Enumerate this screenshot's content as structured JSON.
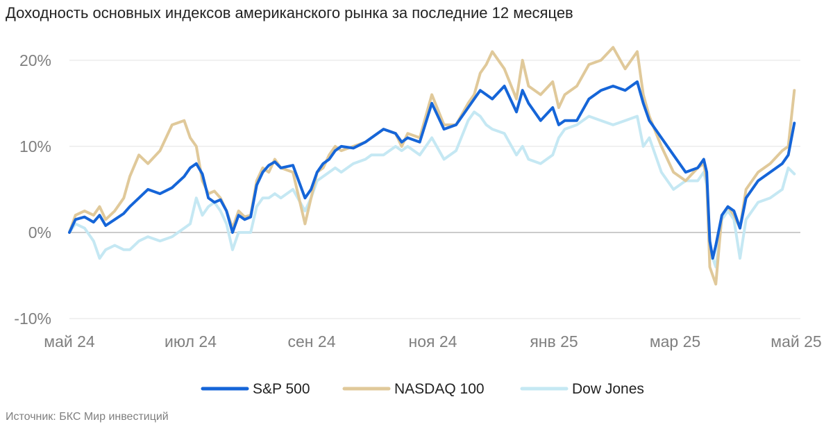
{
  "title": "Доходность основных индексов американского рынка за последние 12 месяцев",
  "source": "Источник: БКС Мир инвестиций",
  "chart_data": {
    "type": "line",
    "title": "Доходность основных индексов американского рынка за последние 12 месяцев",
    "xlabel": "",
    "ylabel": "",
    "x_ticks": [
      "май 24",
      "июл 24",
      "сен 24",
      "ноя 24",
      "янв 25",
      "мар 25",
      "май 25"
    ],
    "y_ticks": [
      "20%",
      "10%",
      "0%",
      "-10%"
    ],
    "y_tick_values": [
      20,
      10,
      0,
      -10
    ],
    "ylim": [
      -10,
      22
    ],
    "xlim": [
      0,
      12.1
    ],
    "grid": true,
    "legend_position": "bottom",
    "series": [
      {
        "name": "S&P 500",
        "color": "#1565d8",
        "x": [
          0,
          0.1,
          0.25,
          0.4,
          0.5,
          0.6,
          0.75,
          0.9,
          1.0,
          1.15,
          1.3,
          1.5,
          1.7,
          1.9,
          2.0,
          2.1,
          2.2,
          2.3,
          2.4,
          2.5,
          2.6,
          2.7,
          2.8,
          2.9,
          3.0,
          3.1,
          3.2,
          3.3,
          3.4,
          3.5,
          3.7,
          3.9,
          4.0,
          4.1,
          4.2,
          4.3,
          4.4,
          4.5,
          4.7,
          4.9,
          5.0,
          5.2,
          5.4,
          5.5,
          5.6,
          5.8,
          6.0,
          6.2,
          6.4,
          6.6,
          6.7,
          6.8,
          6.9,
          7.0,
          7.2,
          7.4,
          7.5,
          7.6,
          7.8,
          8.0,
          8.1,
          8.2,
          8.4,
          8.6,
          8.8,
          9.0,
          9.2,
          9.4,
          9.5,
          9.6,
          9.8,
          10.0,
          10.2,
          10.4,
          10.5,
          10.55,
          10.6,
          10.65,
          10.7,
          10.8,
          10.9,
          11.0,
          11.1,
          11.2,
          11.4,
          11.6,
          11.8,
          11.9,
          12.0
        ],
        "y": [
          0,
          1.5,
          1.8,
          1.2,
          2.0,
          0.8,
          1.5,
          2.2,
          3.0,
          4.0,
          5.0,
          4.5,
          5.2,
          6.5,
          7.5,
          8.0,
          6.8,
          4.0,
          3.5,
          3.8,
          2.5,
          0.0,
          2.0,
          1.5,
          1.8,
          5.5,
          7.0,
          7.8,
          8.2,
          7.5,
          7.8,
          4.0,
          5.0,
          7.0,
          8.0,
          8.5,
          9.5,
          10.0,
          9.8,
          10.5,
          11.0,
          12.0,
          11.5,
          10.5,
          11.0,
          10.5,
          15.0,
          12.0,
          12.5,
          14.5,
          15.5,
          16.5,
          16.0,
          15.5,
          17.0,
          14.0,
          16.5,
          15.0,
          13.0,
          14.5,
          12.5,
          13.0,
          13.0,
          15.5,
          16.5,
          17.0,
          16.5,
          17.5,
          15.0,
          13.0,
          11.0,
          9.0,
          7.0,
          7.5,
          8.5,
          7.0,
          -1.0,
          -3.0,
          -1.5,
          2.0,
          3.0,
          2.5,
          0.5,
          4.0,
          6.0,
          7.0,
          8.0,
          9.0,
          12.7
        ]
      },
      {
        "name": "NASDAQ 100",
        "color": "#e0c99a",
        "x": [
          0,
          0.1,
          0.25,
          0.4,
          0.5,
          0.6,
          0.75,
          0.9,
          1.0,
          1.15,
          1.3,
          1.5,
          1.7,
          1.9,
          2.0,
          2.1,
          2.2,
          2.3,
          2.4,
          2.5,
          2.6,
          2.7,
          2.8,
          2.9,
          3.0,
          3.1,
          3.2,
          3.3,
          3.4,
          3.5,
          3.7,
          3.9,
          4.0,
          4.1,
          4.2,
          4.3,
          4.4,
          4.5,
          4.7,
          4.9,
          5.0,
          5.2,
          5.4,
          5.5,
          5.6,
          5.8,
          6.0,
          6.2,
          6.4,
          6.6,
          6.7,
          6.8,
          6.9,
          7.0,
          7.2,
          7.4,
          7.5,
          7.6,
          7.8,
          8.0,
          8.1,
          8.2,
          8.4,
          8.6,
          8.8,
          9.0,
          9.2,
          9.4,
          9.5,
          9.6,
          9.8,
          10.0,
          10.2,
          10.4,
          10.5,
          10.55,
          10.6,
          10.65,
          10.7,
          10.8,
          10.9,
          11.0,
          11.1,
          11.2,
          11.4,
          11.6,
          11.8,
          11.9,
          12.0
        ],
        "y": [
          0,
          2.0,
          2.5,
          2.0,
          3.0,
          1.5,
          2.5,
          4.0,
          6.5,
          9.0,
          8.0,
          9.5,
          12.5,
          13.0,
          11.0,
          10.0,
          6.0,
          4.5,
          4.8,
          4.0,
          2.5,
          0.5,
          2.5,
          1.8,
          2.0,
          6.0,
          7.5,
          7.0,
          8.5,
          7.5,
          7.0,
          1.0,
          4.0,
          7.0,
          7.5,
          9.0,
          10.0,
          9.5,
          10.0,
          10.5,
          11.0,
          12.0,
          11.5,
          10.0,
          11.5,
          11.0,
          16.0,
          12.5,
          12.5,
          15.0,
          16.0,
          18.5,
          19.5,
          21.0,
          19.0,
          15.5,
          20.0,
          17.0,
          16.0,
          17.5,
          14.5,
          16.0,
          17.0,
          19.5,
          20.0,
          21.5,
          19.0,
          21.0,
          16.0,
          13.5,
          10.0,
          7.0,
          6.0,
          7.5,
          8.0,
          6.0,
          -4.0,
          -5.0,
          -6.0,
          2.0,
          3.0,
          2.0,
          0.5,
          5.0,
          7.0,
          8.0,
          9.5,
          10.0,
          16.5
        ]
      },
      {
        "name": "Dow Jones",
        "color": "#c5e8f3",
        "x": [
          0,
          0.1,
          0.25,
          0.4,
          0.5,
          0.6,
          0.75,
          0.9,
          1.0,
          1.15,
          1.3,
          1.5,
          1.7,
          1.9,
          2.0,
          2.1,
          2.2,
          2.3,
          2.4,
          2.5,
          2.6,
          2.7,
          2.8,
          2.9,
          3.0,
          3.1,
          3.2,
          3.3,
          3.4,
          3.5,
          3.7,
          3.9,
          4.0,
          4.1,
          4.2,
          4.3,
          4.4,
          4.5,
          4.7,
          4.9,
          5.0,
          5.2,
          5.4,
          5.5,
          5.6,
          5.8,
          6.0,
          6.2,
          6.4,
          6.6,
          6.7,
          6.8,
          6.9,
          7.0,
          7.2,
          7.4,
          7.5,
          7.6,
          7.8,
          8.0,
          8.1,
          8.2,
          8.4,
          8.6,
          8.8,
          9.0,
          9.2,
          9.4,
          9.5,
          9.6,
          9.8,
          10.0,
          10.2,
          10.4,
          10.5,
          10.55,
          10.6,
          10.65,
          10.7,
          10.8,
          10.9,
          11.0,
          11.1,
          11.2,
          11.4,
          11.6,
          11.8,
          11.9,
          12.0
        ],
        "y": [
          0,
          1.0,
          0.5,
          -1.0,
          -3.0,
          -2.0,
          -1.5,
          -2.0,
          -2.0,
          -1.0,
          -0.5,
          -1.0,
          -0.5,
          0.5,
          1.0,
          4.0,
          2.0,
          3.0,
          3.5,
          2.5,
          1.0,
          -2.0,
          0.0,
          0.0,
          0.0,
          3.0,
          4.0,
          4.0,
          4.5,
          4.0,
          5.0,
          2.5,
          4.0,
          6.0,
          6.5,
          7.0,
          7.5,
          7.0,
          8.0,
          8.5,
          9.0,
          9.0,
          10.0,
          9.5,
          10.0,
          9.0,
          11.0,
          8.5,
          9.5,
          13.0,
          14.0,
          13.5,
          12.5,
          12.0,
          11.5,
          9.0,
          10.0,
          8.5,
          8.0,
          9.0,
          11.0,
          12.0,
          12.5,
          13.5,
          13.0,
          12.5,
          13.0,
          13.5,
          10.0,
          11.0,
          7.0,
          5.0,
          6.0,
          6.0,
          7.0,
          5.5,
          -3.0,
          -3.0,
          -4.0,
          1.5,
          2.5,
          1.5,
          -3.0,
          1.5,
          3.5,
          4.0,
          5.0,
          7.5,
          6.8
        ]
      }
    ]
  }
}
